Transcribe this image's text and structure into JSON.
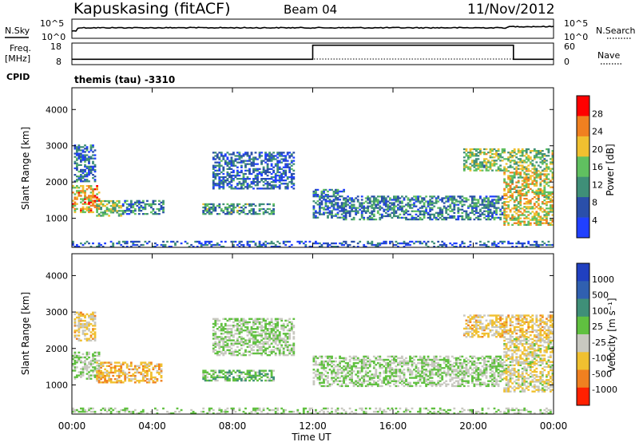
{
  "header": {
    "station": "Kapuskasing (fitACF)",
    "beam": "Beam 04",
    "date": "11/Nov/2012"
  },
  "noise_panel": {
    "left_label": "N.Sky",
    "right_label": "N.Search",
    "left_ticks": [
      "10^5",
      "10^0"
    ],
    "right_ticks": [
      "10^5",
      "10^0"
    ]
  },
  "freq_panel": {
    "left_label_1": "Freq.",
    "left_label_2": "[MHz]",
    "right_label": "Nave",
    "left_ticks": [
      "18",
      "8"
    ],
    "right_ticks": [
      "60",
      "0"
    ],
    "cpid_label": "CPID",
    "cpid_value": "themis (tau) -3310"
  },
  "power_panel": {
    "ylabel": "Slant Range [km]",
    "colorbar_label": "Power [dB]",
    "colorbar_ticks": [
      "28",
      "24",
      "20",
      "16",
      "12",
      "8",
      "4"
    ],
    "colors": [
      "#2040ff",
      "#2a4faa",
      "#3f8f78",
      "#60c060",
      "#f0c030",
      "#f08020",
      "#ff0000"
    ]
  },
  "velocity_panel": {
    "ylabel": "Slant Range [km]",
    "colorbar_label": "Velocity [m s⁻¹]",
    "colorbar_ticks": [
      "1000",
      "500",
      "100",
      "25",
      "-25",
      "-100",
      "-500",
      "-1000"
    ],
    "colors": [
      "#2040c0",
      "#3060b0",
      "#3f8f78",
      "#60c040",
      "#c8c8c0",
      "#f0c030",
      "#f08020",
      "#ff2000"
    ]
  },
  "xaxis": {
    "label": "Time UT",
    "ticks": [
      "00:00",
      "04:00",
      "08:00",
      "12:00",
      "16:00",
      "20:00",
      "00:00"
    ]
  },
  "chart_data": {
    "type": "heatmap",
    "title": "Kapuskasing (fitACF)  Beam 04  11/Nov/2012",
    "xlabel": "Time UT",
    "ylabel": "Slant Range [km]",
    "xlim": [
      0,
      24
    ],
    "ylim": [
      200,
      4600
    ],
    "y_ticks": [
      1000,
      2000,
      3000,
      4000
    ],
    "panels": [
      {
        "name": "Power",
        "unit": "dB",
        "colorbar_range": [
          0,
          32
        ],
        "scatter_regions": [
          {
            "t_start": 0.0,
            "t_end": 1.4,
            "r_low": 1150,
            "r_high": 1900,
            "value": 22
          },
          {
            "t_start": 0.1,
            "t_end": 1.2,
            "r_low": 2000,
            "r_high": 3000,
            "value": 8
          },
          {
            "t_start": 1.2,
            "t_end": 2.5,
            "r_low": 1050,
            "r_high": 1500,
            "value": 16
          },
          {
            "t_start": 2.5,
            "t_end": 4.5,
            "r_low": 1100,
            "r_high": 1500,
            "value": 10
          },
          {
            "t_start": 6.5,
            "t_end": 10.0,
            "r_low": 1100,
            "r_high": 1400,
            "value": 12
          },
          {
            "t_start": 7.0,
            "t_end": 11.0,
            "r_low": 1800,
            "r_high": 2800,
            "value": 7
          },
          {
            "t_start": 12.0,
            "t_end": 13.5,
            "r_low": 1000,
            "r_high": 1800,
            "value": 8
          },
          {
            "t_start": 13.5,
            "t_end": 21.5,
            "r_low": 950,
            "r_high": 1600,
            "value": 10
          },
          {
            "t_start": 21.5,
            "t_end": 24.0,
            "r_low": 800,
            "r_high": 2300,
            "value": 20
          },
          {
            "t_start": 19.5,
            "t_end": 24.0,
            "r_low": 2300,
            "r_high": 2900,
            "value": 16
          },
          {
            "t_start": 0.0,
            "t_end": 24.0,
            "r_low": 200,
            "r_high": 350,
            "value": 6
          }
        ]
      },
      {
        "name": "Velocity",
        "unit": "m s-1",
        "colorbar_range": [
          -1000,
          1000
        ],
        "scatter_regions": [
          {
            "t_start": 0.0,
            "t_end": 1.4,
            "r_low": 1150,
            "r_high": 1900,
            "value": 0
          },
          {
            "t_start": 0.1,
            "t_end": 1.2,
            "r_low": 2200,
            "r_high": 3000,
            "value": -300
          },
          {
            "t_start": 1.2,
            "t_end": 4.5,
            "r_low": 1050,
            "r_high": 1600,
            "value": -400
          },
          {
            "t_start": 6.5,
            "t_end": 10.0,
            "r_low": 1100,
            "r_high": 1400,
            "value": 150
          },
          {
            "t_start": 7.0,
            "t_end": 11.0,
            "r_low": 1800,
            "r_high": 2800,
            "value": 0
          },
          {
            "t_start": 12.0,
            "t_end": 21.5,
            "r_low": 950,
            "r_high": 1800,
            "value": 0
          },
          {
            "t_start": 21.5,
            "t_end": 24.0,
            "r_low": 800,
            "r_high": 2300,
            "value": -200
          },
          {
            "t_start": 19.5,
            "t_end": 24.0,
            "r_low": 2300,
            "r_high": 2900,
            "value": -300
          },
          {
            "t_start": 0.0,
            "t_end": 24.0,
            "r_low": 200,
            "r_high": 350,
            "value": 0
          }
        ]
      }
    ],
    "noise_sky_level": 0.55,
    "frequency_steps": [
      {
        "t_start": 0.0,
        "t_end": 12.0,
        "value": 10.5
      },
      {
        "t_start": 12.0,
        "t_end": 22.0,
        "value": 17.0
      },
      {
        "t_start": 22.0,
        "t_end": 24.0,
        "value": 10.5
      }
    ]
  }
}
